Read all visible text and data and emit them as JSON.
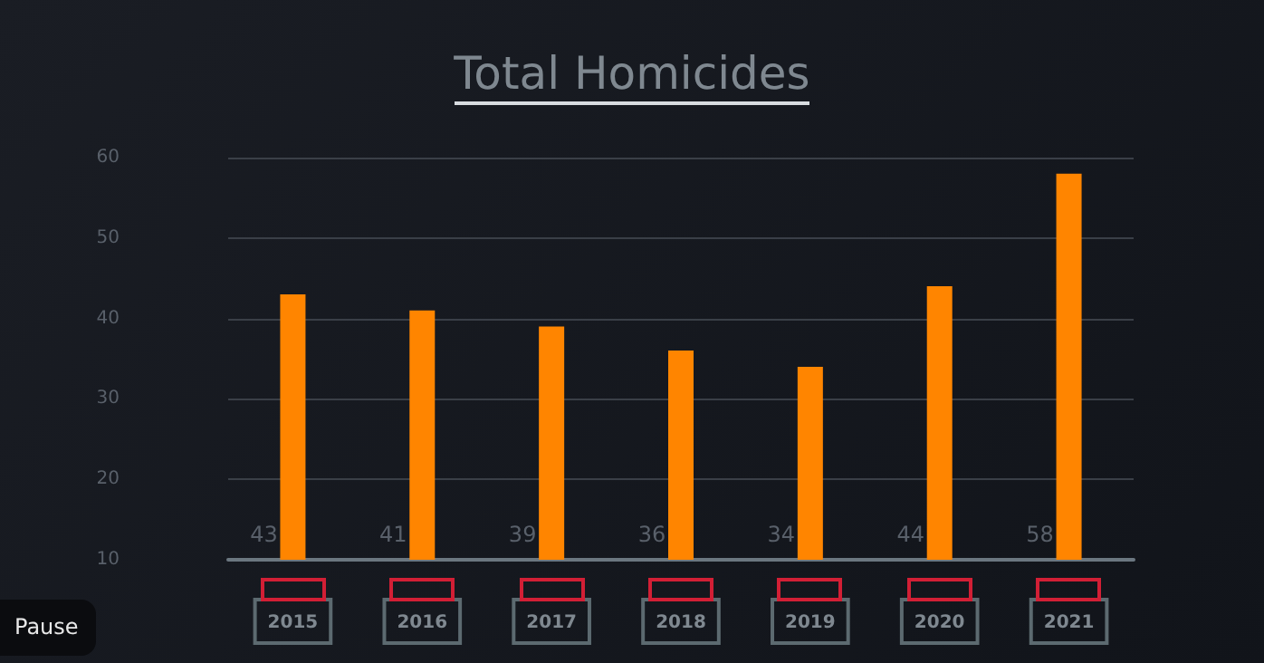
{
  "chart_data": {
    "type": "bar",
    "title": "Total Homicides",
    "categories": [
      "2015",
      "2016",
      "2017",
      "2018",
      "2019",
      "2020",
      "2021"
    ],
    "values": [
      43,
      41,
      39,
      36,
      34,
      44,
      58
    ],
    "color": "#ff8500",
    "data_labels": true,
    "ylim": [
      10,
      60
    ],
    "yticks": [
      10,
      20,
      30,
      40,
      50,
      60
    ],
    "grid": "y",
    "annotations": [
      "Pause"
    ]
  }
}
